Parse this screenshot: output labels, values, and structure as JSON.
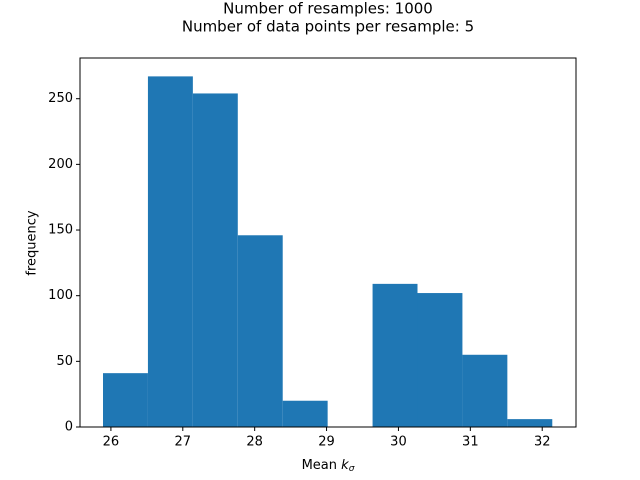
{
  "chart_data": {
    "type": "histogram",
    "title": [
      "Number of resamples: 1000",
      "Number of data points per resample: 5"
    ],
    "x_label": {
      "text": "Mean",
      "var": "k",
      "sub": "σ"
    },
    "y_label": "frequency",
    "bins": [
      25.89,
      26.515,
      27.14,
      27.765,
      28.39,
      29.015,
      29.64,
      30.265,
      30.89,
      31.515,
      32.14
    ],
    "values": [
      41,
      267,
      254,
      146,
      20,
      0,
      109,
      102,
      55,
      6
    ],
    "color": "#1f77b4",
    "xlim": [
      25.57,
      32.47
    ],
    "xticks": [
      26,
      27,
      28,
      29,
      30,
      31,
      32
    ],
    "ylim": [
      0,
      281
    ],
    "yticks": [
      0,
      50,
      100,
      150,
      200,
      250
    ]
  }
}
